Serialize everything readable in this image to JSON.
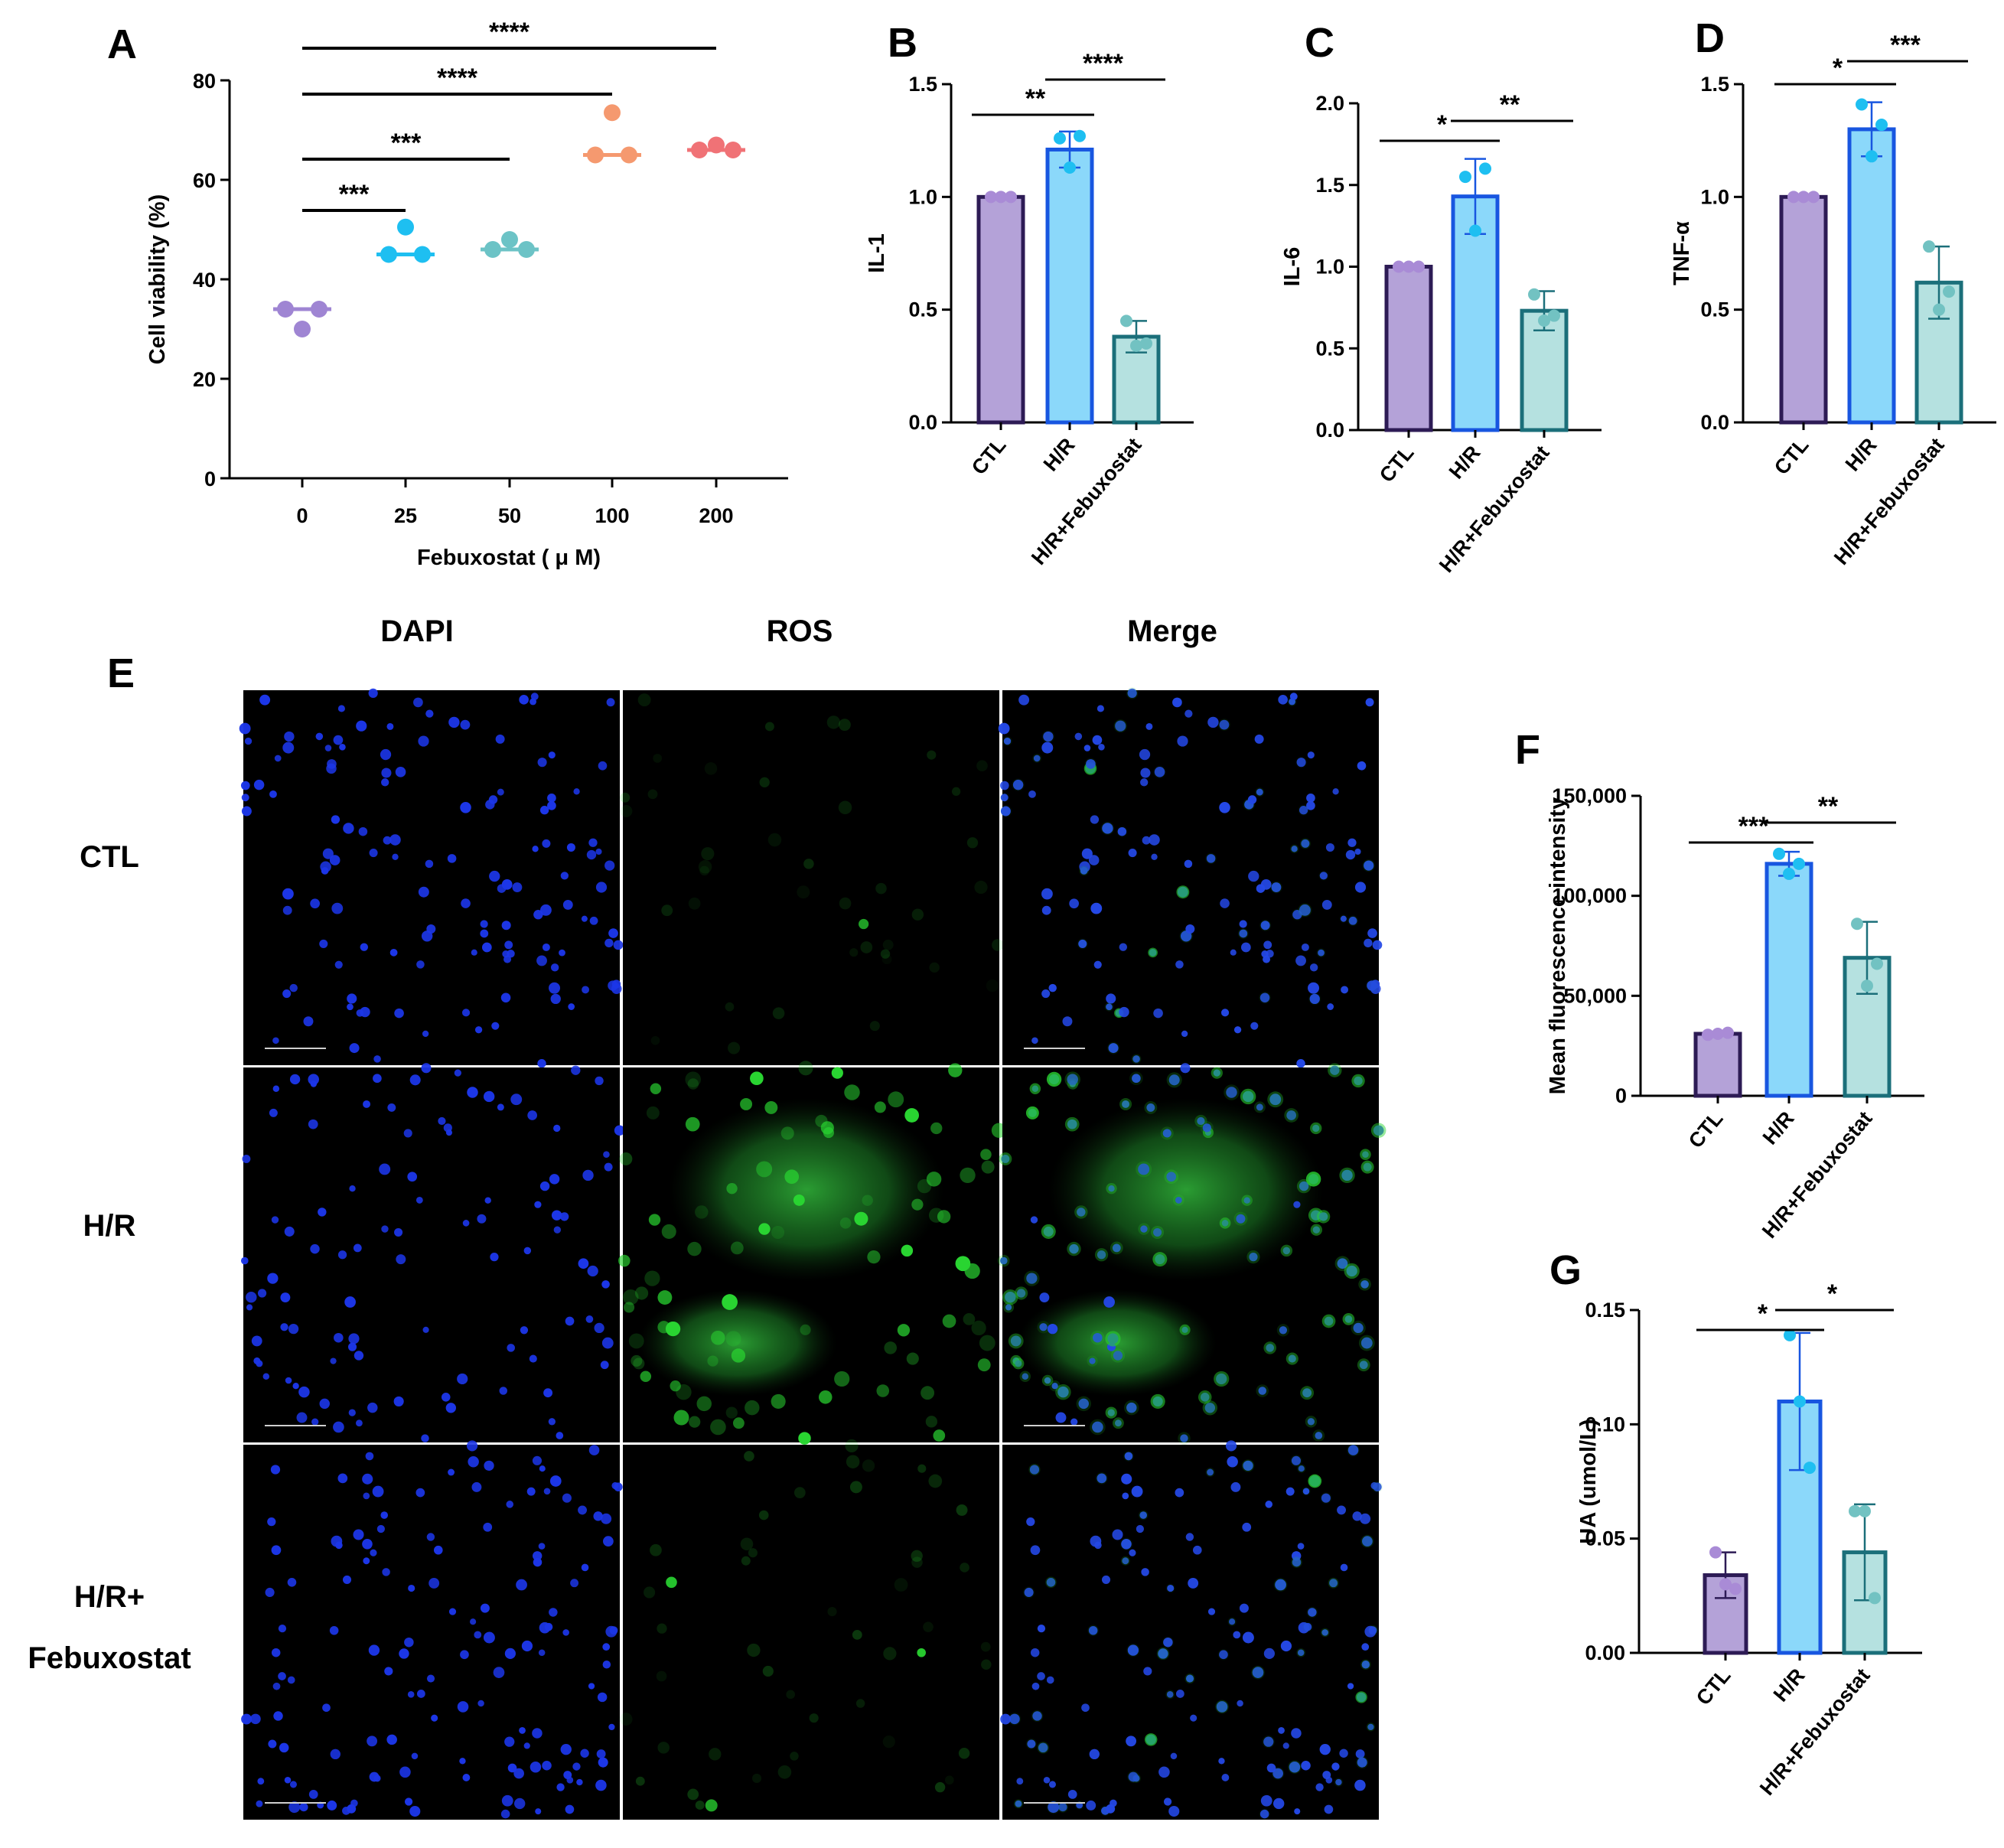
{
  "panels": {
    "A": "A",
    "B": "B",
    "C": "C",
    "D": "D",
    "E": "E",
    "F": "F",
    "G": "G"
  },
  "colors": {
    "CTL": "#b4a2d8",
    "CTL_edge": "#2d1b55",
    "CTL_dot": "#a98bd6",
    "HR": "#8bd8fa",
    "HR_edge": "#1856e0",
    "HR_dot": "#1ebff1",
    "HRF": "#b5e1e0",
    "HRF_edge": "#1b6f7a",
    "HRF_dot": "#72c2c2",
    "dose": [
      "#9f85d3",
      "#1ebff1",
      "#6cc3c6",
      "#f5996f",
      "#f07276"
    ],
    "dapi": "#1c36e8",
    "ros": "#27c830"
  },
  "chart_data": [
    {
      "id": "A",
      "type": "scatter",
      "xlabel": "Febuxostat ( μ M)",
      "ylabel": "Cell viability (%)",
      "categories": [
        "0",
        "25",
        "50",
        "100",
        "200"
      ],
      "ylim": [
        0,
        80
      ],
      "yticks": [
        "0",
        "20",
        "40",
        "60",
        "80"
      ],
      "points": [
        [
          34,
          34,
          30
        ],
        [
          45,
          45,
          50.5
        ],
        [
          46,
          46,
          48
        ],
        [
          65,
          65,
          73.5
        ],
        [
          66,
          66,
          67
        ]
      ],
      "medians": [
        34,
        45,
        46,
        65,
        66
      ],
      "significance": [
        {
          "from": 0,
          "to": 1,
          "label": "***"
        },
        {
          "from": 0,
          "to": 2,
          "label": "***"
        },
        {
          "from": 0,
          "to": 3,
          "label": "****"
        },
        {
          "from": 0,
          "to": 4,
          "label": "****"
        }
      ]
    },
    {
      "id": "B",
      "type": "bar",
      "ylabel": "IL-1",
      "categories": [
        "CTL",
        "H/R",
        "H/R+Febuxostat"
      ],
      "values": [
        1.0,
        1.21,
        0.38
      ],
      "errors": [
        0,
        0.08,
        0.07
      ],
      "points": [
        [
          1.0,
          1.0,
          1.0
        ],
        [
          1.26,
          1.13,
          1.27
        ],
        [
          0.45,
          0.34,
          0.35
        ]
      ],
      "ylim": [
        0,
        1.5
      ],
      "yticks": [
        "0.0",
        "0.5",
        "1.0",
        "1.5"
      ],
      "significance": [
        {
          "from": 0,
          "to": 1,
          "label": "**"
        },
        {
          "from": 1,
          "to": 2,
          "label": "****"
        }
      ]
    },
    {
      "id": "C",
      "type": "bar",
      "ylabel": "IL-6",
      "categories": [
        "CTL",
        "H/R",
        "H/R+Febuxostat"
      ],
      "values": [
        1.0,
        1.43,
        0.73
      ],
      "errors": [
        0,
        0.23,
        0.12
      ],
      "points": [
        [
          1.0,
          1.0,
          1.0
        ],
        [
          1.55,
          1.22,
          1.6
        ],
        [
          0.83,
          0.67,
          0.7
        ]
      ],
      "ylim": [
        0,
        2.0
      ],
      "yticks": [
        "0.0",
        "0.5",
        "1.0",
        "1.5",
        "2.0"
      ],
      "significance": [
        {
          "from": 0,
          "to": 1,
          "label": "*"
        },
        {
          "from": 1,
          "to": 2,
          "label": "**"
        }
      ]
    },
    {
      "id": "D",
      "type": "bar",
      "ylabel": "TNF-α",
      "categories": [
        "CTL",
        "H/R",
        "H/R+Febuxostat"
      ],
      "values": [
        1.0,
        1.3,
        0.62
      ],
      "errors": [
        0,
        0.12,
        0.16
      ],
      "points": [
        [
          1.0,
          1.0,
          1.0
        ],
        [
          1.41,
          1.18,
          1.32
        ],
        [
          0.78,
          0.5,
          0.58
        ]
      ],
      "ylim": [
        0,
        1.5
      ],
      "yticks": [
        "0.0",
        "0.5",
        "1.0",
        "1.5"
      ],
      "significance": [
        {
          "from": 0,
          "to": 1,
          "label": "*"
        },
        {
          "from": 1,
          "to": 2,
          "label": "***"
        }
      ]
    },
    {
      "id": "F",
      "type": "bar",
      "ylabel": "Mean fluorescence intensity",
      "categories": [
        "CTL",
        "H/R",
        "H/R+Febuxostat"
      ],
      "values": [
        31000,
        116000,
        69000
      ],
      "errors": [
        1000,
        6000,
        18000
      ],
      "points": [
        [
          30500,
          31000,
          31500
        ],
        [
          121000,
          111000,
          116000
        ],
        [
          86000,
          55000,
          66000
        ]
      ],
      "ylim": [
        0,
        150000
      ],
      "yticks": [
        "0",
        "50,000",
        "100,000",
        "150,000"
      ],
      "significance": [
        {
          "from": 0,
          "to": 1,
          "label": "***"
        },
        {
          "from": 1,
          "to": 2,
          "label": "**"
        }
      ]
    },
    {
      "id": "G",
      "type": "bar",
      "ylabel": "UA (umol/L)",
      "categories": [
        "CTL",
        "H/R",
        "H/R+Febuxostat"
      ],
      "values": [
        0.034,
        0.11,
        0.044
      ],
      "errors": [
        0.01,
        0.03,
        0.021
      ],
      "points": [
        [
          0.044,
          0.03,
          0.028
        ],
        [
          0.139,
          0.11,
          0.081
        ],
        [
          0.062,
          0.062,
          0.024
        ]
      ],
      "ylim": [
        0,
        0.15
      ],
      "yticks": [
        "0.00",
        "0.05",
        "0.10",
        "0.15"
      ],
      "significance": [
        {
          "from": 0,
          "to": 1,
          "label": "*"
        },
        {
          "from": 1,
          "to": 2,
          "label": "*"
        }
      ]
    }
  ],
  "microscopy": {
    "columns": [
      "DAPI",
      "ROS",
      "Merge"
    ],
    "rows": [
      "CTL",
      "H/R",
      "H/R+",
      "Febuxostat"
    ]
  }
}
